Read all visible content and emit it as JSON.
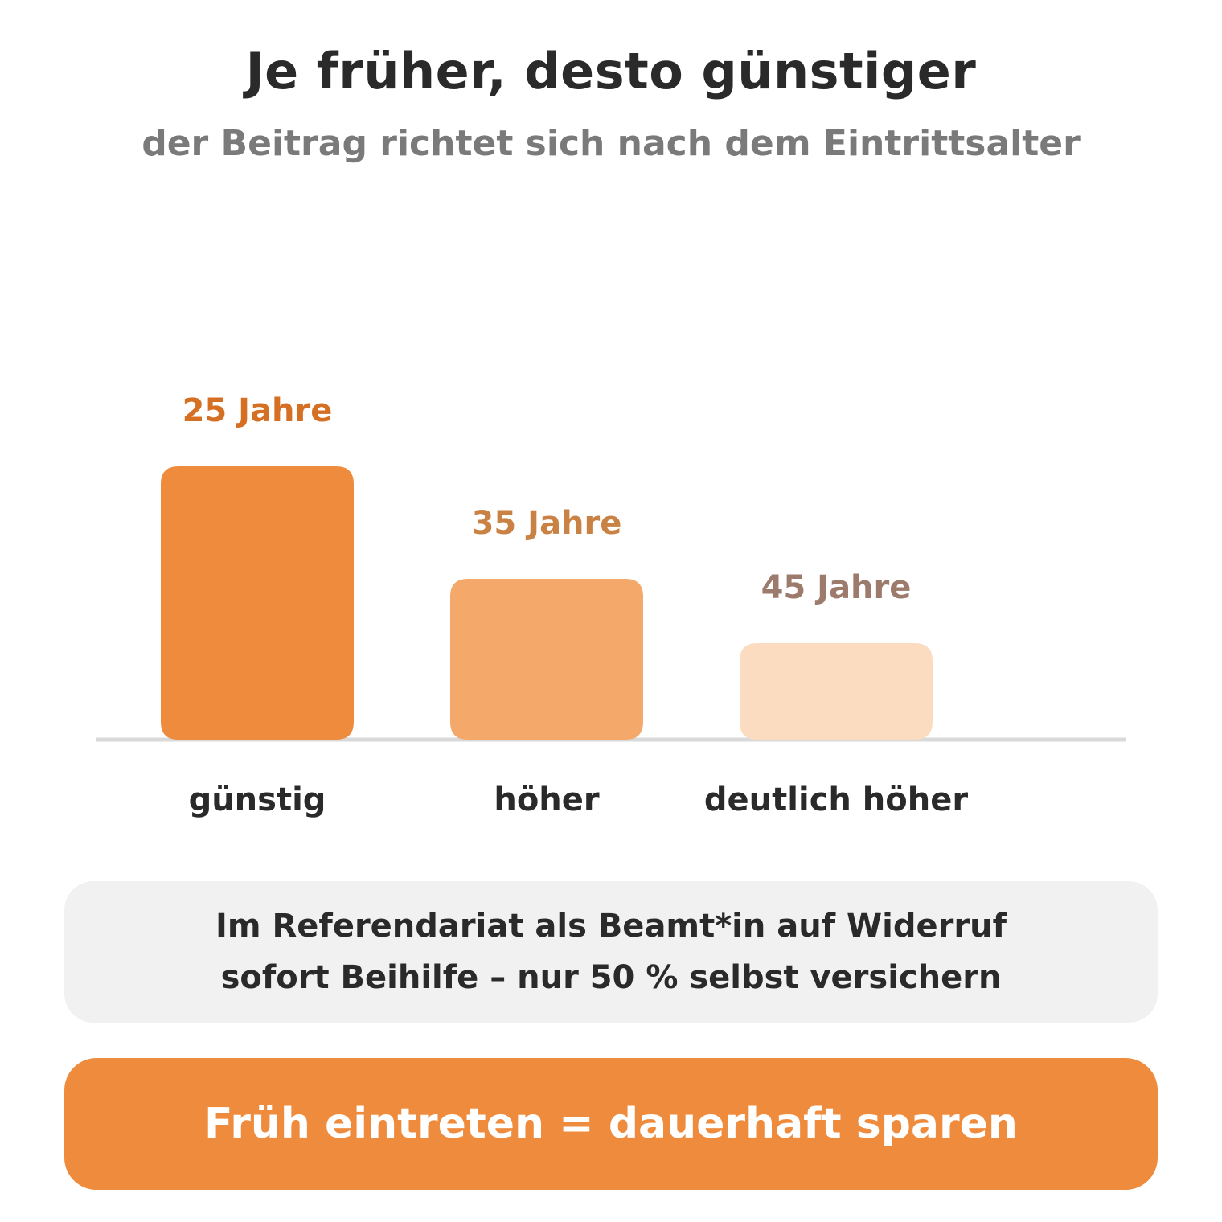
{
  "header": {
    "title": "Je früher, desto günstiger",
    "subtitle": "der Beitrag richtet sich nach dem Eintrittsalter"
  },
  "chart_data": {
    "type": "bar",
    "categories": [
      "günstig",
      "höher",
      "deutlich höher"
    ],
    "value_labels": [
      "25 Jahre",
      "35 Jahre",
      "45 Jahre"
    ],
    "values": [
      340,
      200,
      120
    ],
    "ylim": [
      0,
      440
    ],
    "bar_colors": [
      "#ef8b3d",
      "#f4a96b",
      "#fbdcc1"
    ],
    "label_colors": [
      "#d56f24",
      "#c98144",
      "#9c7a6c"
    ],
    "axis_color": "#d9d9d9",
    "grid": false
  },
  "note": {
    "line1": "Im Referendariat als Beamt*in auf Widerruf",
    "line2": "sofort Beihilfe – nur 50 % selbst versichern"
  },
  "cta": {
    "label": "Früh eintreten = dauerhaft sparen",
    "color": "#ef8b3d"
  }
}
